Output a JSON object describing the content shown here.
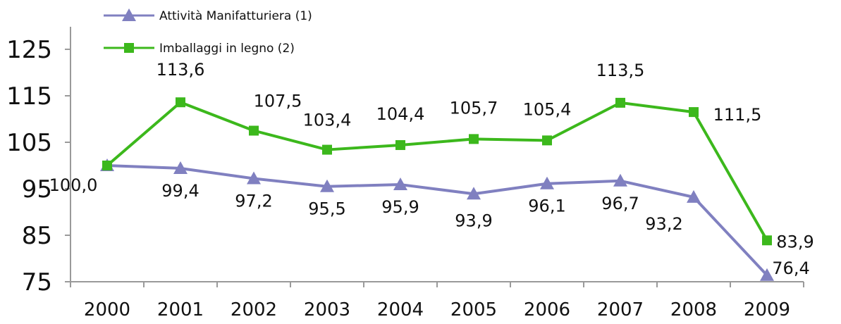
{
  "chart_data": {
    "type": "line",
    "categories": [
      "2000",
      "2001",
      "2002",
      "2003",
      "2004",
      "2005",
      "2006",
      "2007",
      "2008",
      "2009"
    ],
    "ylim": [
      75,
      125
    ],
    "yticks": [
      75,
      85,
      95,
      105,
      115,
      125
    ],
    "ytick_labels": [
      "75",
      "85",
      "95",
      "105",
      "115",
      "125"
    ],
    "grid": false,
    "legend_position": "top-left",
    "series": [
      {
        "name": "Attività Manifatturiera (1)",
        "color": "#8080c0",
        "marker": "triangle",
        "values": [
          100.0,
          99.4,
          97.2,
          95.5,
          95.9,
          93.9,
          96.1,
          96.7,
          93.2,
          76.4
        ],
        "labels": [
          "100,0",
          "99,4",
          "97,2",
          "95,5",
          "95,9",
          "93,9",
          "96,1",
          "96,7",
          "93,2",
          "76,4"
        ]
      },
      {
        "name": "Imballaggi in legno (2)",
        "color": "#3cb81c",
        "marker": "square",
        "values": [
          100.0,
          113.6,
          107.5,
          103.4,
          104.4,
          105.7,
          105.4,
          113.5,
          111.5,
          83.9
        ],
        "labels": [
          "100,0",
          "113,6",
          "107,5",
          "103,4",
          "104,4",
          "105,7",
          "105,4",
          "113,5",
          "111,5",
          "83,9"
        ]
      }
    ]
  }
}
